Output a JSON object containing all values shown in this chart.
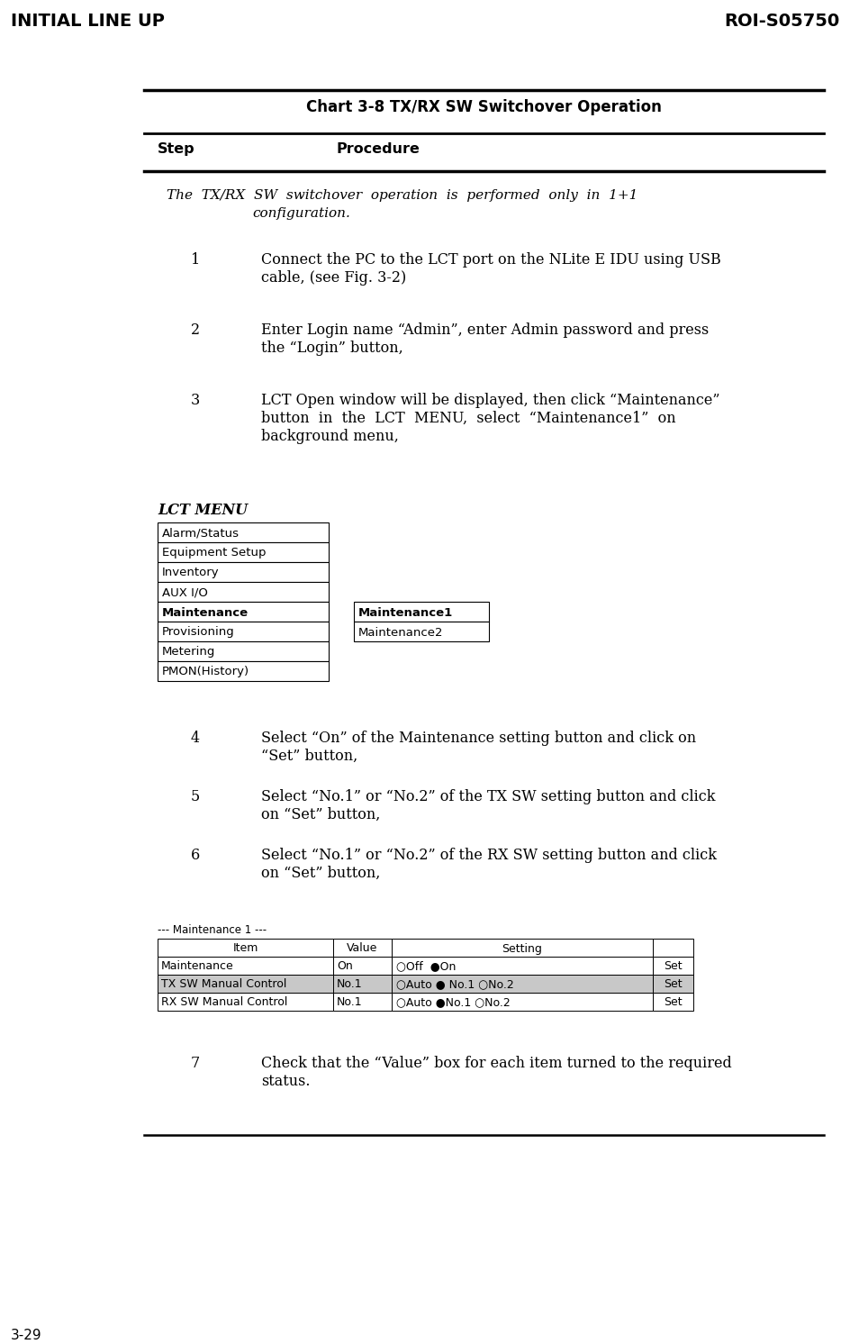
{
  "header_left": "INITIAL LINE UP",
  "header_right": "ROI-S05750",
  "footer_left": "3-29",
  "chart_title": "Chart 3-8 TX/RX SW Switchover Operation",
  "col_step": "Step",
  "col_procedure": "Procedure",
  "intro_line1": "The  TX/RX  SW  switchover  operation  is  performed  only  in  1+1",
  "intro_line2": "configuration.",
  "steps": [
    {
      "num": "1",
      "line1": "Connect the PC to the LCT port on the NLite E IDU using USB",
      "line2": "cable, (see Fig. 3-2)",
      "lines": 2
    },
    {
      "num": "2",
      "line1": "Enter Login name “Admin”, enter Admin password and press",
      "line2": "the “Login” button,",
      "lines": 2
    },
    {
      "num": "3",
      "line1": "LCT Open window will be displayed, then click “Maintenance”",
      "line2": "button  in  the  LCT  MENU,  select  “Maintenance1”  on",
      "line3": "background menu,",
      "lines": 3
    },
    {
      "num": "4",
      "line1": "Select “On” of the Maintenance setting button and click on",
      "line2": "“Set” button,",
      "lines": 2
    },
    {
      "num": "5",
      "line1": "Select “No.1” or “No.2” of the TX SW setting button and click",
      "line2": "on “Set” button,",
      "lines": 2
    },
    {
      "num": "6",
      "line1": "Select “No.1” or “No.2” of the RX SW setting button and click",
      "line2": "on “Set” button,",
      "lines": 2
    },
    {
      "num": "7",
      "line1": "Check that the “Value” box for each item turned to the required",
      "line2": "status.",
      "lines": 2
    }
  ],
  "lct_menu_label": "LCT MENU",
  "lct_menu_items": [
    "Alarm/Status",
    "Equipment Setup",
    "Inventory",
    "AUX I/O",
    "Maintenance",
    "Provisioning",
    "Metering",
    "PMON(History)"
  ],
  "lct_submenu_items": [
    "Maintenance1",
    "Maintenance2"
  ],
  "maintenance_bold_index": 4,
  "maint_title": "--- Maintenance 1 ---",
  "maint_row0": [
    "Maintenance",
    "On",
    "○Off  ●On",
    "Set"
  ],
  "maint_row1": [
    "TX SW Manual Control",
    "No.1",
    "○Auto ● No.1 ○No.2",
    "Set"
  ],
  "maint_row2": [
    "RX SW Manual Control",
    "No.1",
    "○Auto ●No.1 ○No.2",
    "Set"
  ],
  "bg_color": "#ffffff",
  "text_color": "#000000",
  "line_color": "#000000"
}
